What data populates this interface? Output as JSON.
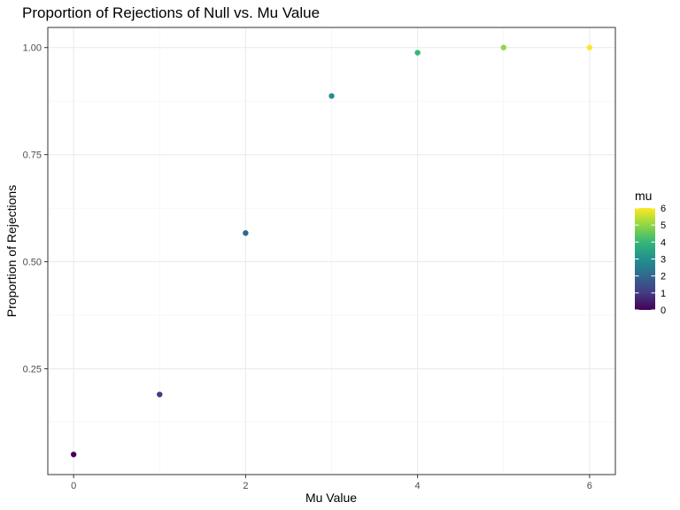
{
  "chart_data": {
    "type": "scatter",
    "title": "Proportion of Rejections of Null vs. Mu Value",
    "xlabel": "Mu Value",
    "ylabel": "Proportion of Rejections",
    "xlim": [
      -0.3,
      6.3
    ],
    "ylim": [
      0.003,
      1.047
    ],
    "x_ticks": [
      0,
      2,
      4,
      6
    ],
    "x_tick_labels": [
      "0",
      "2",
      "4",
      "6"
    ],
    "y_ticks": [
      0.25,
      0.5,
      0.75,
      1.0
    ],
    "y_tick_labels": [
      "0.25",
      "0.50",
      "0.75",
      "1.00"
    ],
    "grid": true,
    "points": [
      {
        "x": 0,
        "y": 0.05,
        "mu": 0
      },
      {
        "x": 1,
        "y": 0.19,
        "mu": 1
      },
      {
        "x": 2,
        "y": 0.567,
        "mu": 2
      },
      {
        "x": 3,
        "y": 0.887,
        "mu": 3
      },
      {
        "x": 4,
        "y": 0.988,
        "mu": 4
      },
      {
        "x": 5,
        "y": 1.0,
        "mu": 5
      },
      {
        "x": 6,
        "y": 1.0,
        "mu": 6
      }
    ],
    "colorscale": [
      "#440154",
      "#443a83",
      "#31688e",
      "#21908d",
      "#35b779",
      "#8fd744",
      "#fde725"
    ],
    "legend": {
      "title": "mu",
      "position": "right",
      "ticks": [
        0,
        1,
        2,
        3,
        4,
        5,
        6
      ],
      "tick_labels": [
        "0",
        "1",
        "2",
        "3",
        "4",
        "5",
        "6"
      ]
    }
  }
}
